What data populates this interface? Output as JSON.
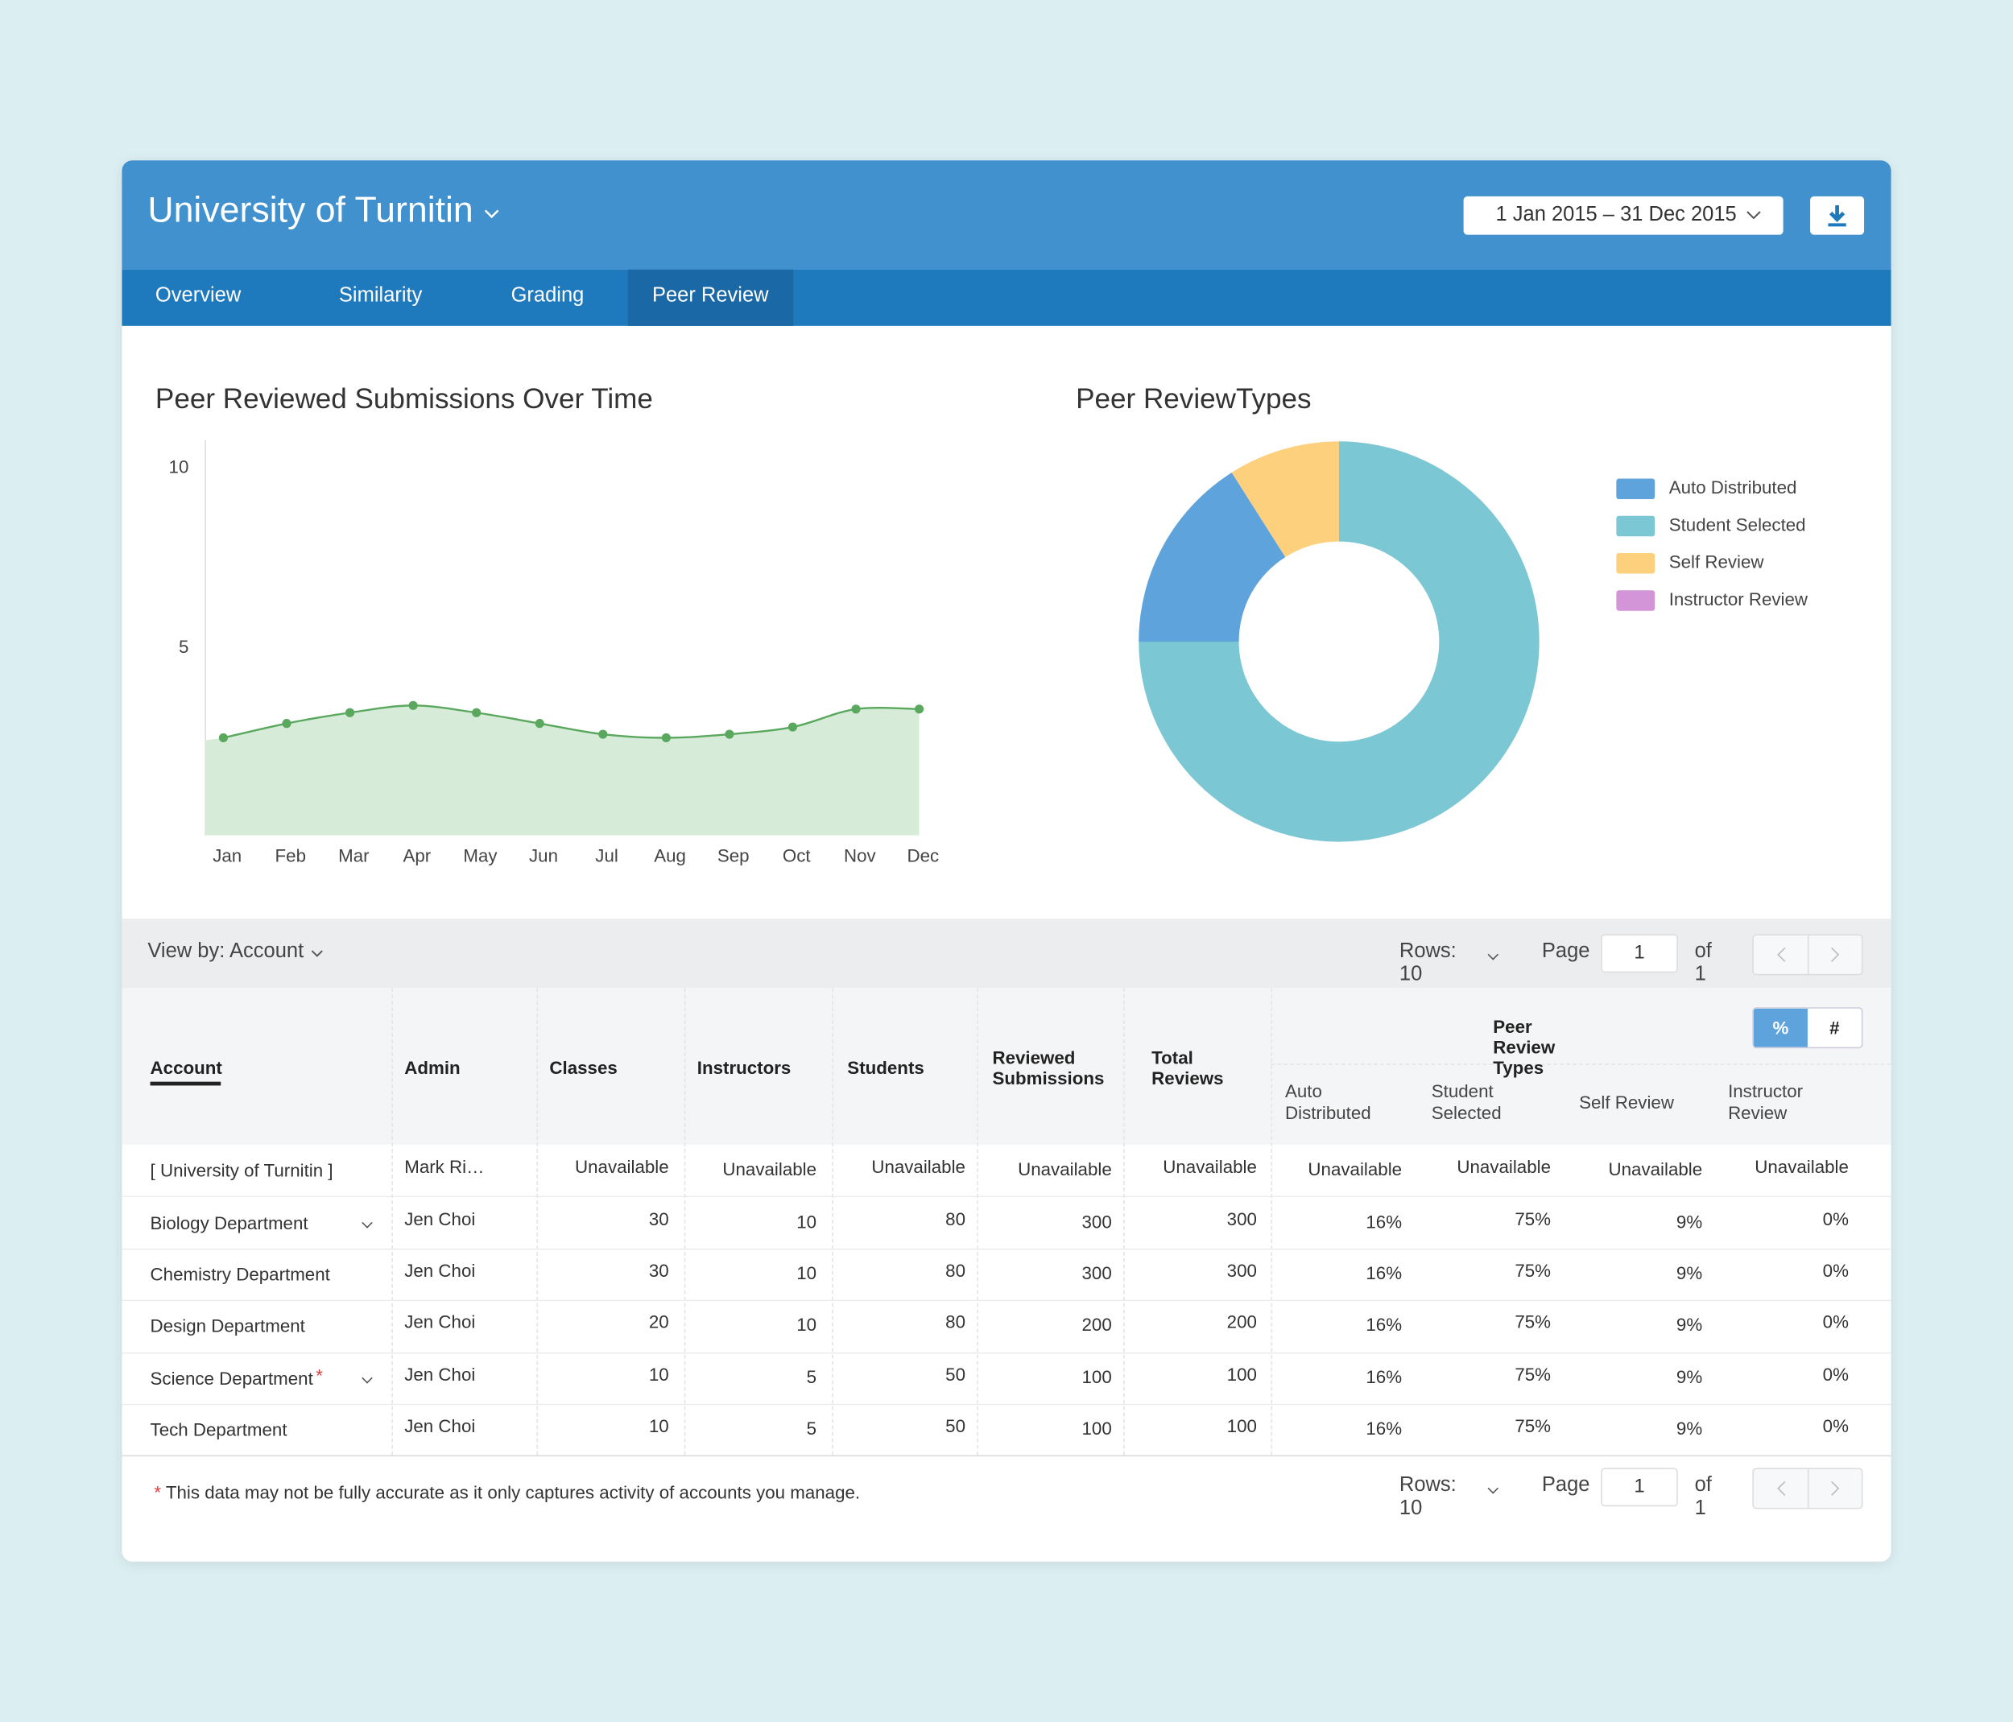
{
  "header": {
    "title": "University of Turnitin",
    "date_range": "1 Jan 2015 – 31 Dec 2015"
  },
  "tabs": [
    "Overview",
    "Similarity",
    "Grading",
    "Peer Review"
  ],
  "chart_data": [
    {
      "type": "area",
      "title": "Peer Reviewed Submissions Over Time",
      "categories": [
        "Jan",
        "Feb",
        "Mar",
        "Apr",
        "May",
        "Jun",
        "Jul",
        "Aug",
        "Sep",
        "Oct",
        "Nov",
        "Dec"
      ],
      "values": [
        2.5,
        2.9,
        3.2,
        3.4,
        3.2,
        2.9,
        2.6,
        2.5,
        2.6,
        2.8,
        3.3,
        3.3
      ],
      "color": "#5aa85e",
      "fill": "#d6ecd8",
      "ylim": [
        0,
        11
      ],
      "yticks": [
        5,
        10
      ]
    },
    {
      "type": "donut",
      "title": "Peer ReviewTypes",
      "categories": [
        "Auto Distributed",
        "Student Selected",
        "Self Review",
        "Instructor Review"
      ],
      "values": [
        16,
        75,
        9,
        0
      ],
      "colors": [
        "#5fa3dc",
        "#7cc7d4",
        "#fdd07e",
        "#d394d8"
      ]
    }
  ],
  "table": {
    "view_by": "View by: Account",
    "pagination": {
      "rows": "Rows: 10",
      "page_label": "Page",
      "page": "1",
      "of": "of 1"
    },
    "group_header": "Peer Review Types",
    "toggle": [
      "%",
      "#"
    ],
    "columns": [
      "Account",
      "Admin",
      "Classes",
      "Instructors",
      "Students",
      "Reviewed Submissions",
      "Total Reviews",
      "Auto Distributed",
      "Student Selected",
      "Self Review",
      "Instructor Review"
    ],
    "rows": [
      [
        "[ University of Turnitin ]",
        "Mark Ri…",
        "Unavailable",
        "Unavailable",
        "Unavailable",
        "Unavailable",
        "Unavailable",
        "Unavailable",
        "Unavailable",
        "Unavailable",
        "Unavailable"
      ],
      [
        "Biology Department",
        "Jen Choi",
        30,
        10,
        80,
        300,
        300,
        "16%",
        "75%",
        "9%",
        "0%"
      ],
      [
        "Chemistry Department",
        "Jen Choi",
        30,
        10,
        80,
        300,
        300,
        "16%",
        "75%",
        "9%",
        "0%"
      ],
      [
        "Design Department",
        "Jen Choi",
        20,
        10,
        80,
        200,
        200,
        "16%",
        "75%",
        "9%",
        "0%"
      ],
      [
        "Science Department",
        "Jen Choi",
        10,
        5,
        50,
        100,
        100,
        "16%",
        "75%",
        "9%",
        "0%"
      ],
      [
        "Tech Department",
        "Jen Choi",
        10,
        5,
        50,
        100,
        100,
        "16%",
        "75%",
        "9%",
        "0%"
      ]
    ]
  },
  "footnote": {
    "marker": "*",
    "text": "This data may not be fully accurate as it only captures activity of accounts you manage."
  }
}
